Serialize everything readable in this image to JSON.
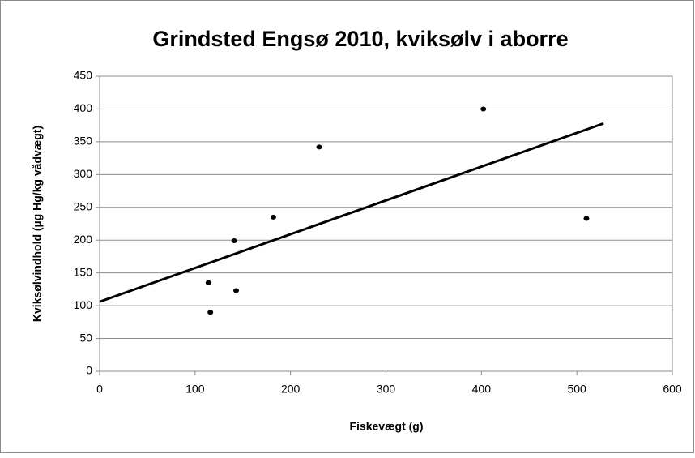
{
  "chart_data": {
    "type": "scatter",
    "title": "Grindsted Engsø 2010, kviksølv i aborre",
    "x_label": "Fiskevægt (g)",
    "y_label": "Kviksølvindhold  (µg Hg/kg  vådvægt)",
    "series": [
      {
        "color": "#000000",
        "x": [
          114,
          116,
          141,
          143,
          182,
          230,
          402,
          510
        ],
        "values": [
          135,
          90,
          199,
          123,
          235,
          342,
          400,
          233
        ]
      }
    ],
    "trendline": {
      "color": "#000000",
      "x": [
        0,
        528
      ],
      "values": [
        106,
        378
      ]
    },
    "xlim": [
      0,
      600
    ],
    "xticks": [
      0,
      100,
      200,
      300,
      400,
      500,
      600
    ],
    "ylim": [
      0,
      450
    ],
    "yticks": [
      0,
      50,
      100,
      150,
      200,
      250,
      300,
      350,
      400,
      450
    ],
    "grid": true
  }
}
